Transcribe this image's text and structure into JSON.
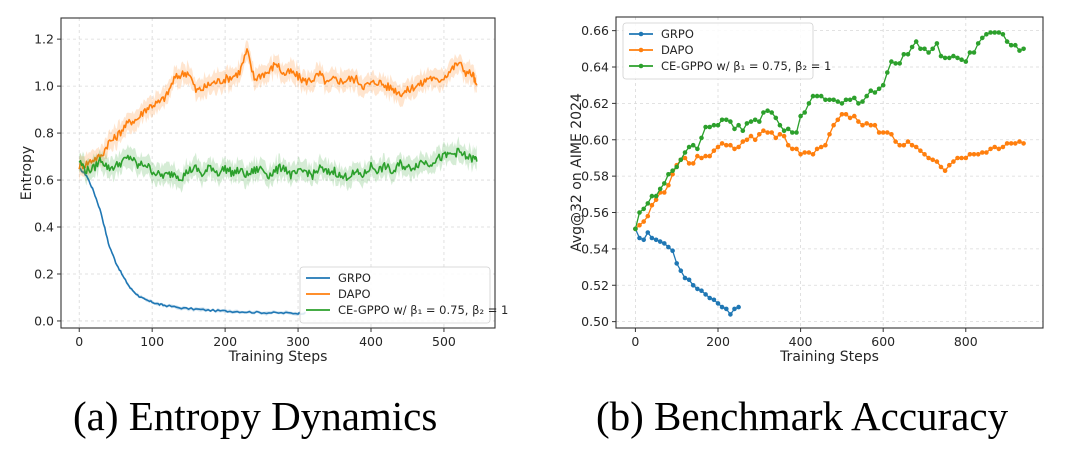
{
  "captions": {
    "left": "(a) Entropy Dynamics",
    "right": "(b) Benchmark Accuracy"
  },
  "colors": {
    "GRPO": "#1f77b4",
    "DAPO": "#ff7f0e",
    "CE-GPPO": "#2ca02c"
  },
  "chart_data": [
    {
      "type": "line",
      "title": "",
      "xlabel": "Training Steps",
      "ylabel": "Entropy",
      "xlim": [
        -25,
        570
      ],
      "ylim": [
        -0.03,
        1.29
      ],
      "xticks": [
        0,
        100,
        200,
        300,
        400,
        500
      ],
      "yticks": [
        0.0,
        0.2,
        0.4,
        0.6,
        0.8,
        1.0,
        1.2
      ],
      "ytick_labels": [
        "0.0",
        "0.2",
        "0.4",
        "0.6",
        "0.8",
        "1.0",
        "1.2"
      ],
      "grid": true,
      "legend_position": "lower-right",
      "shaded_band": true,
      "series": [
        {
          "name": "GRPO",
          "legend_label": "GRPO",
          "x": [
            0,
            10,
            20,
            30,
            40,
            50,
            60,
            70,
            80,
            90,
            100,
            110,
            120,
            140,
            160,
            180,
            200,
            220,
            240,
            260,
            280,
            300,
            310
          ],
          "y": [
            0.65,
            0.62,
            0.55,
            0.46,
            0.33,
            0.25,
            0.19,
            0.14,
            0.11,
            0.09,
            0.08,
            0.07,
            0.065,
            0.055,
            0.05,
            0.045,
            0.042,
            0.04,
            0.037,
            0.035,
            0.034,
            0.033,
            0.033
          ]
        },
        {
          "name": "DAPO",
          "legend_label": "DAPO",
          "x": [
            0,
            10,
            20,
            30,
            40,
            50,
            60,
            70,
            80,
            90,
            100,
            110,
            120,
            130,
            140,
            150,
            160,
            170,
            180,
            190,
            200,
            210,
            220,
            230,
            240,
            250,
            260,
            270,
            280,
            290,
            300,
            310,
            320,
            330,
            340,
            350,
            360,
            370,
            380,
            390,
            400,
            410,
            420,
            430,
            440,
            450,
            460,
            470,
            480,
            490,
            500,
            510,
            520,
            530,
            540,
            545
          ],
          "y": [
            0.66,
            0.67,
            0.69,
            0.7,
            0.76,
            0.78,
            0.82,
            0.85,
            0.86,
            0.9,
            0.92,
            0.93,
            0.96,
            1.03,
            1.05,
            1.06,
            0.98,
            0.99,
            1.01,
            1.02,
            1.03,
            1.04,
            1.06,
            1.15,
            1.03,
            1.05,
            1.06,
            1.1,
            1.05,
            1.06,
            1.04,
            1.02,
            1.03,
            1.05,
            1.01,
            1.03,
            1.02,
            1.03,
            1.03,
            1.0,
            1.01,
            1.02,
            1.0,
            0.99,
            0.97,
            0.98,
            1.0,
            1.01,
            1.04,
            1.02,
            1.04,
            1.07,
            1.1,
            1.06,
            1.05,
            0.99
          ]
        },
        {
          "name": "CE-GPPO",
          "legend_label": "CE-GPPO w/ β₁ = 0.75,  β₂ = 1",
          "x": [
            0,
            10,
            20,
            30,
            40,
            50,
            60,
            70,
            80,
            90,
            100,
            110,
            120,
            130,
            140,
            150,
            160,
            170,
            180,
            190,
            200,
            210,
            220,
            230,
            240,
            250,
            260,
            270,
            280,
            290,
            300,
            310,
            320,
            330,
            340,
            350,
            360,
            370,
            380,
            390,
            400,
            410,
            420,
            430,
            440,
            450,
            460,
            470,
            480,
            490,
            500,
            510,
            520,
            530,
            540,
            545
          ],
          "y": [
            0.68,
            0.64,
            0.65,
            0.69,
            0.65,
            0.66,
            0.68,
            0.7,
            0.66,
            0.67,
            0.64,
            0.62,
            0.62,
            0.63,
            0.61,
            0.64,
            0.65,
            0.62,
            0.66,
            0.63,
            0.65,
            0.63,
            0.64,
            0.62,
            0.64,
            0.65,
            0.62,
            0.64,
            0.66,
            0.62,
            0.63,
            0.64,
            0.62,
            0.65,
            0.63,
            0.64,
            0.61,
            0.62,
            0.63,
            0.62,
            0.66,
            0.64,
            0.66,
            0.63,
            0.67,
            0.65,
            0.66,
            0.68,
            0.67,
            0.69,
            0.7,
            0.71,
            0.72,
            0.7,
            0.69,
            0.69
          ]
        }
      ]
    },
    {
      "type": "line",
      "title": "",
      "xlabel": "Training Steps",
      "ylabel": "Avg@32 on AIME 2024",
      "xlim": [
        -47,
        987
      ],
      "ylim": [
        0.4965,
        0.6675
      ],
      "xticks": [
        0,
        200,
        400,
        600,
        800
      ],
      "yticks": [
        0.5,
        0.52,
        0.54,
        0.56,
        0.58,
        0.6,
        0.62,
        0.64,
        0.66
      ],
      "ytick_labels": [
        "0.50",
        "0.52",
        "0.54",
        "0.56",
        "0.58",
        "0.60",
        "0.62",
        "0.64",
        "0.66"
      ],
      "grid": true,
      "legend_position": "upper-left",
      "markers": true,
      "series": [
        {
          "name": "GRPO",
          "legend_label": "GRPO",
          "x": [
            0,
            10,
            20,
            30,
            40,
            50,
            60,
            70,
            80,
            90,
            100,
            110,
            120,
            130,
            140,
            150,
            160,
            170,
            180,
            190,
            200,
            210,
            220,
            230,
            240,
            250
          ],
          "y": [
            0.551,
            0.546,
            0.545,
            0.549,
            0.546,
            0.545,
            0.544,
            0.543,
            0.541,
            0.539,
            0.532,
            0.528,
            0.524,
            0.523,
            0.52,
            0.518,
            0.517,
            0.515,
            0.513,
            0.512,
            0.51,
            0.508,
            0.507,
            0.504,
            0.507,
            0.508
          ]
        },
        {
          "name": "DAPO",
          "legend_label": "DAPO",
          "x": [
            0,
            10,
            20,
            30,
            40,
            50,
            60,
            70,
            80,
            90,
            100,
            110,
            120,
            130,
            140,
            150,
            160,
            170,
            180,
            190,
            200,
            210,
            220,
            230,
            240,
            250,
            260,
            270,
            280,
            290,
            300,
            310,
            320,
            330,
            340,
            350,
            360,
            370,
            380,
            390,
            400,
            410,
            420,
            430,
            440,
            450,
            460,
            470,
            480,
            490,
            500,
            510,
            520,
            530,
            540,
            550,
            560,
            570,
            580,
            590,
            600,
            610,
            620,
            630,
            640,
            650,
            660,
            670,
            680,
            690,
            700,
            710,
            720,
            730,
            740,
            750,
            760,
            770,
            780,
            790,
            800,
            810,
            820,
            830,
            840,
            850,
            860,
            870,
            880,
            890,
            900,
            910,
            920,
            930,
            940
          ],
          "y": [
            0.551,
            0.553,
            0.555,
            0.558,
            0.564,
            0.567,
            0.571,
            0.571,
            0.575,
            0.581,
            0.586,
            0.589,
            0.59,
            0.587,
            0.587,
            0.591,
            0.59,
            0.591,
            0.591,
            0.594,
            0.596,
            0.598,
            0.597,
            0.597,
            0.595,
            0.596,
            0.599,
            0.6,
            0.602,
            0.6,
            0.603,
            0.605,
            0.604,
            0.604,
            0.601,
            0.603,
            0.602,
            0.597,
            0.595,
            0.595,
            0.592,
            0.593,
            0.593,
            0.592,
            0.595,
            0.596,
            0.597,
            0.603,
            0.608,
            0.611,
            0.614,
            0.614,
            0.612,
            0.613,
            0.61,
            0.608,
            0.609,
            0.608,
            0.608,
            0.604,
            0.604,
            0.604,
            0.603,
            0.599,
            0.597,
            0.597,
            0.599,
            0.597,
            0.596,
            0.594,
            0.592,
            0.59,
            0.589,
            0.588,
            0.585,
            0.583,
            0.586,
            0.588,
            0.59,
            0.59,
            0.59,
            0.592,
            0.592,
            0.592,
            0.593,
            0.593,
            0.595,
            0.596,
            0.595,
            0.596,
            0.598,
            0.598,
            0.598,
            0.599,
            0.598
          ]
        },
        {
          "name": "CE-GPPO",
          "legend_label": "CE-GPPO w/ β₁ = 0.75,  β₂ = 1",
          "x": [
            0,
            10,
            20,
            30,
            40,
            50,
            60,
            70,
            80,
            90,
            100,
            110,
            120,
            130,
            140,
            150,
            160,
            170,
            180,
            190,
            200,
            210,
            220,
            230,
            240,
            250,
            260,
            270,
            280,
            290,
            300,
            310,
            320,
            330,
            340,
            350,
            360,
            370,
            380,
            390,
            400,
            410,
            420,
            430,
            440,
            450,
            460,
            470,
            480,
            490,
            500,
            510,
            520,
            530,
            540,
            550,
            560,
            570,
            580,
            590,
            600,
            610,
            620,
            630,
            640,
            650,
            660,
            670,
            680,
            690,
            700,
            710,
            720,
            730,
            740,
            750,
            760,
            770,
            780,
            790,
            800,
            810,
            820,
            830,
            840,
            850,
            860,
            870,
            880,
            890,
            900,
            910,
            920,
            930,
            940
          ],
          "y": [
            0.551,
            0.56,
            0.562,
            0.565,
            0.569,
            0.569,
            0.573,
            0.576,
            0.581,
            0.583,
            0.585,
            0.589,
            0.593,
            0.596,
            0.597,
            0.595,
            0.601,
            0.607,
            0.607,
            0.608,
            0.608,
            0.611,
            0.611,
            0.61,
            0.606,
            0.608,
            0.605,
            0.609,
            0.61,
            0.611,
            0.61,
            0.615,
            0.616,
            0.615,
            0.612,
            0.608,
            0.605,
            0.606,
            0.604,
            0.604,
            0.613,
            0.615,
            0.62,
            0.624,
            0.624,
            0.624,
            0.622,
            0.622,
            0.622,
            0.621,
            0.62,
            0.622,
            0.622,
            0.623,
            0.62,
            0.621,
            0.624,
            0.627,
            0.626,
            0.628,
            0.63,
            0.637,
            0.643,
            0.642,
            0.642,
            0.647,
            0.647,
            0.651,
            0.654,
            0.65,
            0.65,
            0.648,
            0.65,
            0.653,
            0.646,
            0.645,
            0.645,
            0.646,
            0.645,
            0.644,
            0.643,
            0.648,
            0.648,
            0.653,
            0.656,
            0.658,
            0.659,
            0.659,
            0.659,
            0.658,
            0.654,
            0.652,
            0.652,
            0.649,
            0.65
          ]
        }
      ]
    }
  ]
}
